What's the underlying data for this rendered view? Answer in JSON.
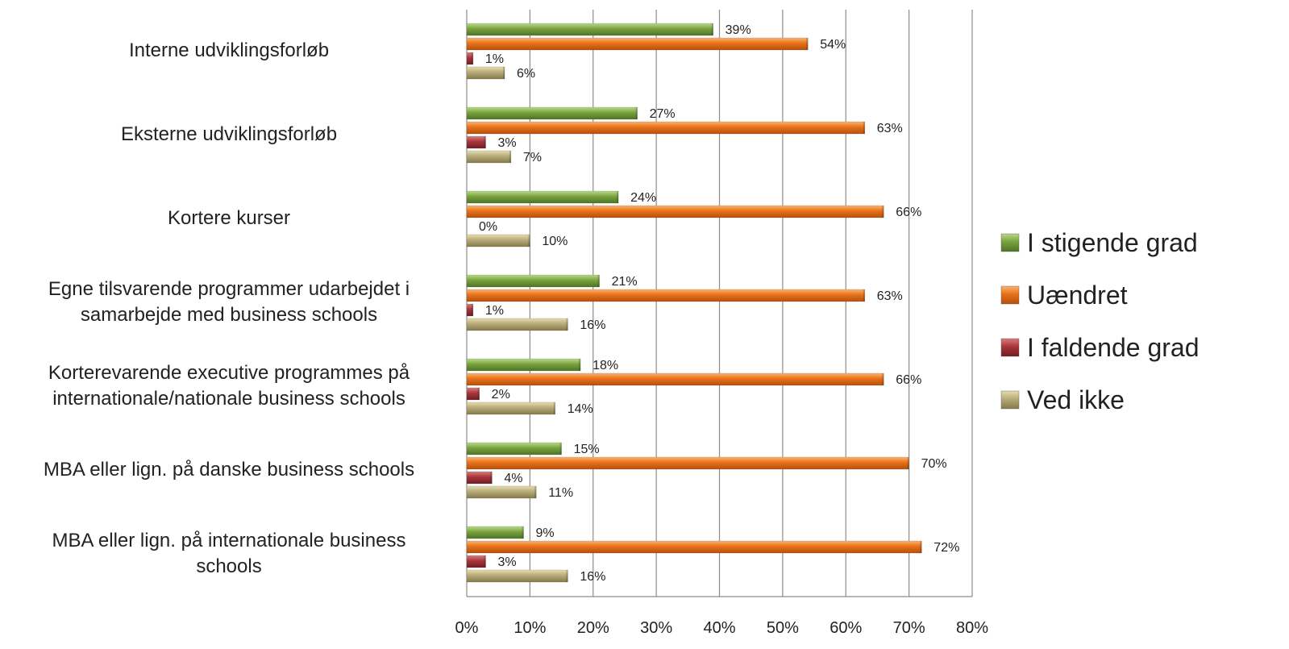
{
  "chart_data": {
    "type": "bar",
    "orientation": "horizontal",
    "categories": [
      "Interne udviklingsforløb",
      "Eksterne udviklingsforløb",
      "Kortere kurser",
      "Egne tilsvarende programmer udarbejdet i samarbejde med business schools",
      "Korterevarende executive programmes på internationale/nationale business schools",
      "MBA eller lign. på danske business schools",
      "MBA eller lign. på internationale business schools"
    ],
    "category_lines": [
      [
        "Interne udviklingsforløb"
      ],
      [
        "Eksterne udviklingsforløb"
      ],
      [
        "Kortere kurser"
      ],
      [
        "Egne tilsvarende programmer udarbejdet i",
        "samarbejde med business schools"
      ],
      [
        "Korterevarende executive programmes på",
        "internationale/nationale business schools"
      ],
      [
        "MBA eller lign. på danske business schools"
      ],
      [
        "MBA eller lign. på internationale business",
        "schools"
      ]
    ],
    "series": [
      {
        "name": "I stigende grad",
        "color": "#77a33e",
        "values": [
          39,
          27,
          24,
          21,
          18,
          15,
          9
        ]
      },
      {
        "name": "Uændret",
        "color": "#e8701a",
        "values": [
          54,
          63,
          66,
          63,
          66,
          70,
          72
        ]
      },
      {
        "name": "I faldende grad",
        "color": "#a8353a",
        "values": [
          1,
          3,
          0,
          1,
          2,
          4,
          3
        ]
      },
      {
        "name": "Ved ikke",
        "color": "#b6ab78",
        "values": [
          6,
          7,
          10,
          16,
          14,
          11,
          16
        ]
      }
    ],
    "value_labels": [
      [
        "39%",
        "54%",
        "1%",
        "6%"
      ],
      [
        "27%",
        "63%",
        "3%",
        "7%"
      ],
      [
        "24%",
        "66%",
        "0%",
        "10%"
      ],
      [
        "21%",
        "63%",
        "1%",
        "16%"
      ],
      [
        "18%",
        "66%",
        "2%",
        "14%"
      ],
      [
        "15%",
        "70%",
        "4%",
        "11%"
      ],
      [
        "9%",
        "72%",
        "3%",
        "16%"
      ]
    ],
    "x_ticks": [
      "0%",
      "10%",
      "20%",
      "30%",
      "40%",
      "50%",
      "60%",
      "70%",
      "80%"
    ],
    "xlim": [
      0,
      80
    ],
    "grid": true,
    "legend_position": "right"
  }
}
